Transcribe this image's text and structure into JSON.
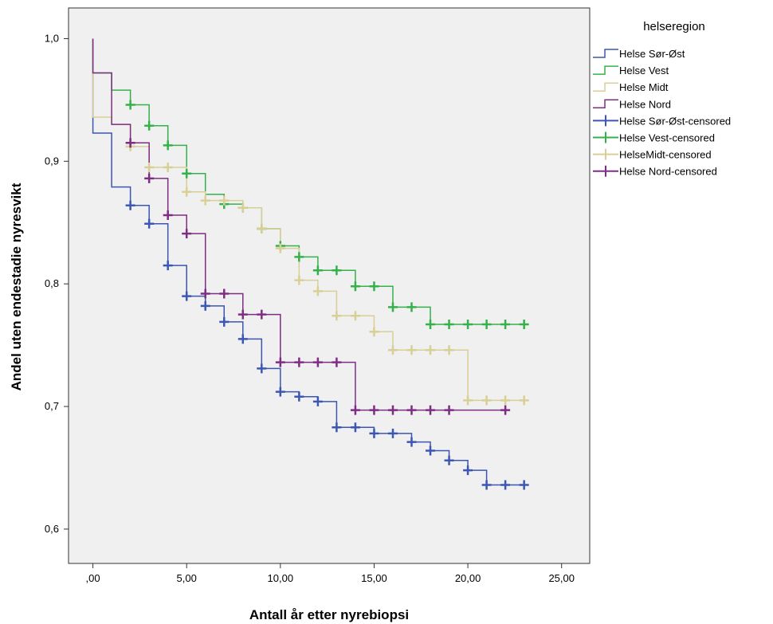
{
  "chart_data": {
    "type": "line",
    "subtype": "kaplan-meier step curves with censoring marks",
    "xlabel": "Antall år etter nyrebiopsi",
    "ylabel": "Andel uten endestadie nyresvikt",
    "xlim": [
      -1.3,
      26.5
    ],
    "ylim": [
      0.572,
      1.025
    ],
    "xticks": [
      0,
      5,
      10,
      15,
      20,
      25
    ],
    "xtick_labels": [
      ",00",
      "5,00",
      "10,00",
      "15,00",
      "20,00",
      "25,00"
    ],
    "yticks": [
      0.6,
      0.7,
      0.8,
      0.9,
      1.0
    ],
    "ytick_labels": [
      "0,6",
      "0,7",
      "0,8",
      "0,9",
      "1,0"
    ],
    "grid": false,
    "background": "#f0f0f0",
    "legend": {
      "title": "helseregion",
      "position": "right",
      "entries": [
        {
          "label": "Helse Sør-Øst",
          "series": 0,
          "kind": "line"
        },
        {
          "label": "Helse Vest",
          "series": 1,
          "kind": "line"
        },
        {
          "label": "Helse Midt",
          "series": 2,
          "kind": "line"
        },
        {
          "label": "Helse Nord",
          "series": 3,
          "kind": "line"
        },
        {
          "label": "Helse Sør-Øst-censored",
          "series": 0,
          "kind": "censor"
        },
        {
          "label": "Helse Vest-censored",
          "series": 1,
          "kind": "censor"
        },
        {
          "label": "HelseMidt-censored",
          "series": 2,
          "kind": "censor"
        },
        {
          "label": "Helse Nord-censored",
          "series": 3,
          "kind": "censor"
        }
      ]
    },
    "series": [
      {
        "name": "Helse Sør-Øst",
        "color": "#3b56b3",
        "steps": [
          [
            0,
            1.0
          ],
          [
            0,
            0.923
          ],
          [
            1,
            0.879
          ],
          [
            2,
            0.864
          ],
          [
            3,
            0.849
          ],
          [
            4,
            0.815
          ],
          [
            5,
            0.79
          ],
          [
            6,
            0.782
          ],
          [
            7,
            0.769
          ],
          [
            8,
            0.755
          ],
          [
            9,
            0.731
          ],
          [
            10,
            0.712
          ],
          [
            11,
            0.708
          ],
          [
            12,
            0.704
          ],
          [
            13,
            0.683
          ],
          [
            15,
            0.678
          ],
          [
            17,
            0.671
          ],
          [
            18,
            0.664
          ],
          [
            19,
            0.656
          ],
          [
            20,
            0.648
          ],
          [
            21,
            0.636
          ],
          [
            23,
            0.636
          ]
        ],
        "censored": [
          [
            2,
            0.864
          ],
          [
            3,
            0.849
          ],
          [
            4,
            0.815
          ],
          [
            5,
            0.79
          ],
          [
            6,
            0.782
          ],
          [
            7,
            0.769
          ],
          [
            8,
            0.755
          ],
          [
            9,
            0.731
          ],
          [
            10,
            0.712
          ],
          [
            11,
            0.708
          ],
          [
            12,
            0.704
          ],
          [
            13,
            0.683
          ],
          [
            14,
            0.683
          ],
          [
            15,
            0.678
          ],
          [
            16,
            0.678
          ],
          [
            17,
            0.671
          ],
          [
            18,
            0.664
          ],
          [
            19,
            0.656
          ],
          [
            20,
            0.648
          ],
          [
            21,
            0.636
          ],
          [
            22,
            0.636
          ],
          [
            23,
            0.636
          ]
        ]
      },
      {
        "name": "Helse Vest",
        "color": "#35b14b",
        "steps": [
          [
            0,
            1.0
          ],
          [
            0,
            0.972
          ],
          [
            1,
            0.958
          ],
          [
            2,
            0.946
          ],
          [
            3,
            0.929
          ],
          [
            4,
            0.913
          ],
          [
            5,
            0.89
          ],
          [
            6,
            0.873
          ],
          [
            7,
            0.865
          ],
          [
            8,
            0.862
          ],
          [
            9,
            0.845
          ],
          [
            10,
            0.831
          ],
          [
            11,
            0.822
          ],
          [
            12,
            0.811
          ],
          [
            14,
            0.798
          ],
          [
            16,
            0.781
          ],
          [
            18,
            0.767
          ],
          [
            23,
            0.767
          ]
        ],
        "censored": [
          [
            2,
            0.946
          ],
          [
            3,
            0.929
          ],
          [
            4,
            0.913
          ],
          [
            5,
            0.89
          ],
          [
            7,
            0.865
          ],
          [
            8,
            0.862
          ],
          [
            9,
            0.845
          ],
          [
            10,
            0.831
          ],
          [
            11,
            0.822
          ],
          [
            12,
            0.811
          ],
          [
            13,
            0.811
          ],
          [
            14,
            0.798
          ],
          [
            15,
            0.798
          ],
          [
            16,
            0.781
          ],
          [
            17,
            0.781
          ],
          [
            18,
            0.767
          ],
          [
            19,
            0.767
          ],
          [
            20,
            0.767
          ],
          [
            21,
            0.767
          ],
          [
            22,
            0.767
          ],
          [
            23,
            0.767
          ]
        ]
      },
      {
        "name": "Helse Midt",
        "color": "#d8cf96",
        "steps": [
          [
            0,
            1.0
          ],
          [
            0,
            0.936
          ],
          [
            1,
            0.93
          ],
          [
            2,
            0.912
          ],
          [
            3,
            0.895
          ],
          [
            5,
            0.875
          ],
          [
            6,
            0.868
          ],
          [
            8,
            0.862
          ],
          [
            9,
            0.845
          ],
          [
            10,
            0.829
          ],
          [
            11,
            0.803
          ],
          [
            12,
            0.794
          ],
          [
            13,
            0.774
          ],
          [
            15,
            0.761
          ],
          [
            16,
            0.746
          ],
          [
            20,
            0.705
          ],
          [
            23,
            0.705
          ]
        ],
        "censored": [
          [
            2,
            0.912
          ],
          [
            3,
            0.895
          ],
          [
            4,
            0.895
          ],
          [
            5,
            0.875
          ],
          [
            6,
            0.868
          ],
          [
            7,
            0.868
          ],
          [
            8,
            0.862
          ],
          [
            9,
            0.845
          ],
          [
            10,
            0.829
          ],
          [
            11,
            0.803
          ],
          [
            12,
            0.794
          ],
          [
            13,
            0.774
          ],
          [
            14,
            0.774
          ],
          [
            15,
            0.761
          ],
          [
            16,
            0.746
          ],
          [
            17,
            0.746
          ],
          [
            18,
            0.746
          ],
          [
            19,
            0.746
          ],
          [
            20,
            0.705
          ],
          [
            21,
            0.705
          ],
          [
            22,
            0.705
          ],
          [
            23,
            0.705
          ]
        ]
      },
      {
        "name": "Helse Nord",
        "color": "#7d2e83",
        "steps": [
          [
            0,
            1.0
          ],
          [
            0,
            0.972
          ],
          [
            1,
            0.93
          ],
          [
            2,
            0.915
          ],
          [
            3,
            0.886
          ],
          [
            4,
            0.856
          ],
          [
            5,
            0.841
          ],
          [
            6,
            0.792
          ],
          [
            8,
            0.775
          ],
          [
            10,
            0.736
          ],
          [
            14,
            0.697
          ],
          [
            22,
            0.697
          ]
        ],
        "censored": [
          [
            2,
            0.915
          ],
          [
            3,
            0.886
          ],
          [
            4,
            0.856
          ],
          [
            5,
            0.841
          ],
          [
            6,
            0.792
          ],
          [
            7,
            0.792
          ],
          [
            8,
            0.775
          ],
          [
            9,
            0.775
          ],
          [
            10,
            0.736
          ],
          [
            11,
            0.736
          ],
          [
            12,
            0.736
          ],
          [
            13,
            0.736
          ],
          [
            14,
            0.697
          ],
          [
            15,
            0.697
          ],
          [
            16,
            0.697
          ],
          [
            17,
            0.697
          ],
          [
            18,
            0.697
          ],
          [
            19,
            0.697
          ],
          [
            22,
            0.697
          ]
        ]
      }
    ]
  }
}
